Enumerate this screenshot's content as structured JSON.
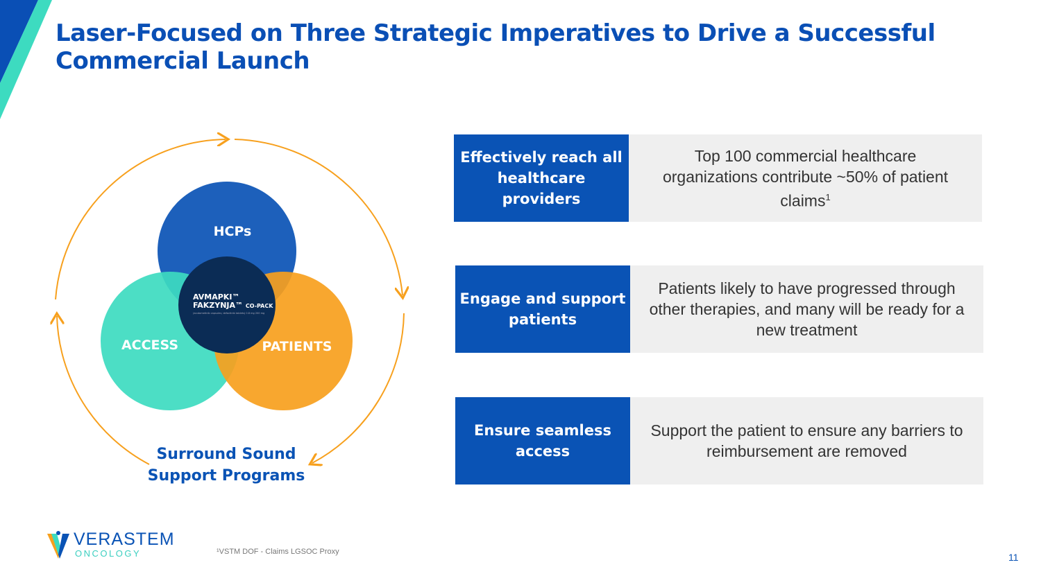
{
  "title": "Laser-Focused on Three Strategic Imperatives to Drive a Successful Commercial Launch",
  "diagram": {
    "circles": {
      "top": "HCPs",
      "left": "ACCESS",
      "right": "PATIENTS"
    },
    "center_product": {
      "line1": "AVMAPKI™",
      "line2": "FAKZYNJA™",
      "suffix": "CO-PACK",
      "sub": "(avutometinib capsules; defactinib tablets) 0.8 mg 200 mg"
    },
    "caption_line1": "Surround Sound",
    "caption_line2": "Support Programs"
  },
  "imperatives": [
    {
      "label": "Effectively reach all healthcare providers",
      "description": "Top 100 commercial healthcare organizations contribute ~50% of patient claims",
      "sup": "1"
    },
    {
      "label": "Engage and support patients",
      "description": "Patients likely to have progressed through other therapies, and many will be ready for a new treatment"
    },
    {
      "label": "Ensure seamless access",
      "description": "Support the patient to ensure any barriers to reimbursement are removed"
    }
  ],
  "footer": {
    "logo_name": "VERASTEM",
    "logo_sub": "ONCOLOGY",
    "footnote": "¹VSTM DOF - Claims LGSOC Proxy",
    "page_number": "11"
  },
  "colors": {
    "blue": "#0a53b5",
    "teal": "#3ddbc0",
    "orange": "#f7a01d",
    "navy": "#0b2c55"
  }
}
